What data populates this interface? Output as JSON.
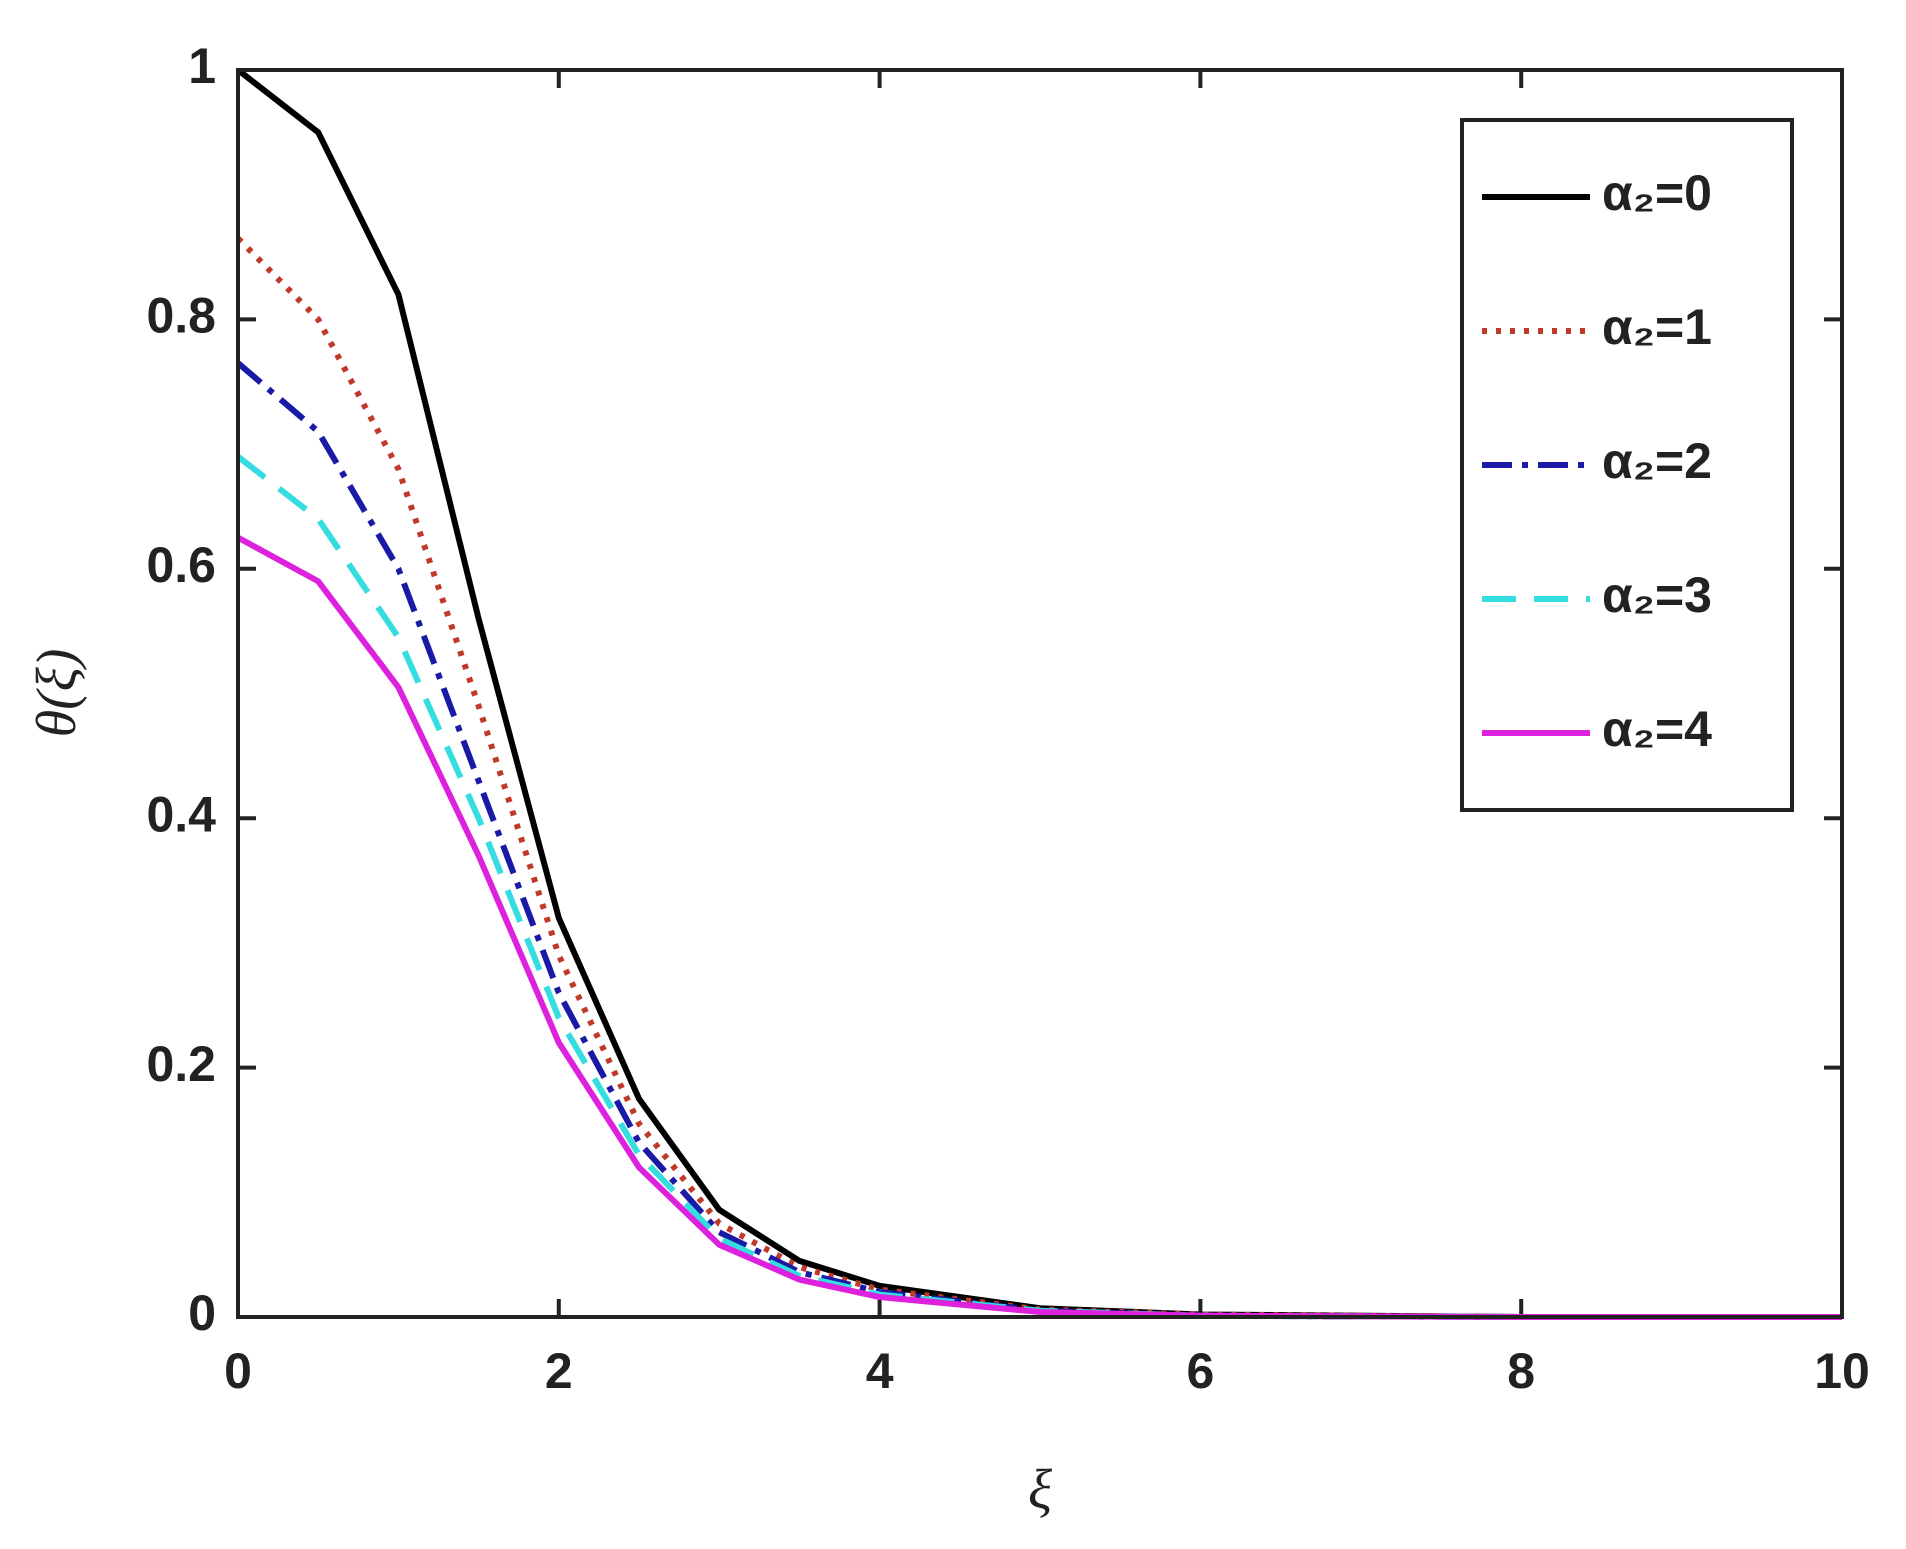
{
  "chart_data": {
    "type": "line",
    "xlabel": "ξ",
    "ylabel": "θ(ξ)",
    "x": [
      0,
      0.5,
      1,
      1.5,
      2,
      2.5,
      3,
      3.5,
      4,
      5,
      6,
      8,
      10
    ],
    "series": [
      {
        "name": "α₂=0",
        "color": "#000000",
        "dash": "solid",
        "values": [
          1.0,
          0.95,
          0.82,
          0.56,
          0.32,
          0.175,
          0.086,
          0.045,
          0.025,
          0.007,
          0.002,
          0,
          0
        ]
      },
      {
        "name": "α₂=1",
        "color": "#c0392b",
        "dash": "dotted",
        "values": [
          0.865,
          0.8,
          0.68,
          0.49,
          0.29,
          0.155,
          0.075,
          0.04,
          0.022,
          0.006,
          0.002,
          0,
          0
        ]
      },
      {
        "name": "α₂=2",
        "color": "#1a1aa6",
        "dash": "dashdot",
        "values": [
          0.765,
          0.71,
          0.6,
          0.43,
          0.26,
          0.14,
          0.068,
          0.036,
          0.02,
          0.005,
          0.001,
          0,
          0
        ]
      },
      {
        "name": "α₂=3",
        "color": "#33dde0",
        "dash": "dashed",
        "values": [
          0.69,
          0.64,
          0.545,
          0.4,
          0.24,
          0.13,
          0.063,
          0.033,
          0.018,
          0.005,
          0.001,
          0,
          0
        ]
      },
      {
        "name": "α₂=4",
        "color": "#dd22dd",
        "dash": "solid",
        "values": [
          0.625,
          0.59,
          0.505,
          0.37,
          0.22,
          0.12,
          0.058,
          0.03,
          0.016,
          0.004,
          0.001,
          0,
          0
        ]
      }
    ],
    "xlim": [
      0,
      10
    ],
    "xticks": [
      0,
      2,
      4,
      6,
      8,
      10
    ],
    "ylim": [
      0,
      1
    ],
    "yticks": [
      0,
      0.2,
      0.4,
      0.6,
      0.8,
      1
    ],
    "grid": false,
    "legend": "upper right"
  }
}
